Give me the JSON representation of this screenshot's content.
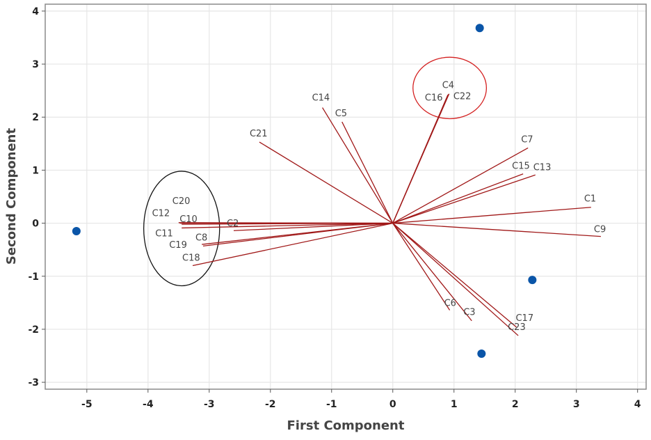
{
  "chart_data": {
    "type": "scatter",
    "subtype": "biplot",
    "xlabel": "First Component",
    "ylabel": "Second Component",
    "xlim": [
      -5.68,
      4.14
    ],
    "ylim": [
      -3.13,
      4.13
    ],
    "xticks": [
      -5,
      -4,
      -3,
      -2,
      -1,
      0,
      1,
      2,
      3,
      4
    ],
    "yticks": [
      -3,
      -2,
      -1,
      0,
      1,
      2,
      3,
      4
    ],
    "grid": true,
    "legend": "none",
    "colors": {
      "vectors": "#a01818",
      "points": "#0a55a8",
      "grid": "#e6e6e6"
    },
    "points": [
      {
        "x": -5.17,
        "y": -0.15
      },
      {
        "x": 1.42,
        "y": 3.68
      },
      {
        "x": 2.28,
        "y": -1.07
      },
      {
        "x": 1.45,
        "y": -2.46
      }
    ],
    "vectors": [
      {
        "name": "C1",
        "x": 3.24,
        "y": 0.3
      },
      {
        "name": "C2",
        "x": -2.6,
        "y": -0.14
      },
      {
        "name": "C3",
        "x": 1.29,
        "y": -1.84
      },
      {
        "name": "C4",
        "x": 0.92,
        "y": 2.44
      },
      {
        "name": "C5",
        "x": -0.83,
        "y": 1.91
      },
      {
        "name": "C6",
        "x": 0.93,
        "y": -1.64
      },
      {
        "name": "C7",
        "x": 2.21,
        "y": 1.42
      },
      {
        "name": "C8",
        "x": -3.1,
        "y": -0.43
      },
      {
        "name": "C9",
        "x": 3.4,
        "y": -0.25
      },
      {
        "name": "C10",
        "x": -3.45,
        "y": -0.02
      },
      {
        "name": "C11",
        "x": -3.45,
        "y": -0.09
      },
      {
        "name": "C12",
        "x": -3.48,
        "y": 0.0
      },
      {
        "name": "C13",
        "x": 2.33,
        "y": 0.91
      },
      {
        "name": "C14",
        "x": -1.15,
        "y": 2.18
      },
      {
        "name": "C15",
        "x": 2.13,
        "y": 0.93
      },
      {
        "name": "C16",
        "x": 0.9,
        "y": 2.42
      },
      {
        "name": "C17",
        "x": 2.02,
        "y": -1.96
      },
      {
        "name": "C18",
        "x": -3.27,
        "y": -0.8
      },
      {
        "name": "C19",
        "x": -3.12,
        "y": -0.4
      },
      {
        "name": "C20",
        "x": -3.5,
        "y": 0.01
      },
      {
        "name": "C21",
        "x": -2.18,
        "y": 1.53
      },
      {
        "name": "C22",
        "x": 0.91,
        "y": 2.43
      },
      {
        "name": "C23",
        "x": 2.05,
        "y": -2.12
      }
    ],
    "annotations": [
      {
        "type": "ellipse",
        "color": "#d42020",
        "cx": 0.93,
        "cy": 2.55,
        "rx": 0.6,
        "ry": 0.58
      },
      {
        "type": "ellipse",
        "color": "#111111",
        "cx": -3.45,
        "cy": -0.1,
        "rx": 0.62,
        "ry": 1.08
      }
    ]
  }
}
